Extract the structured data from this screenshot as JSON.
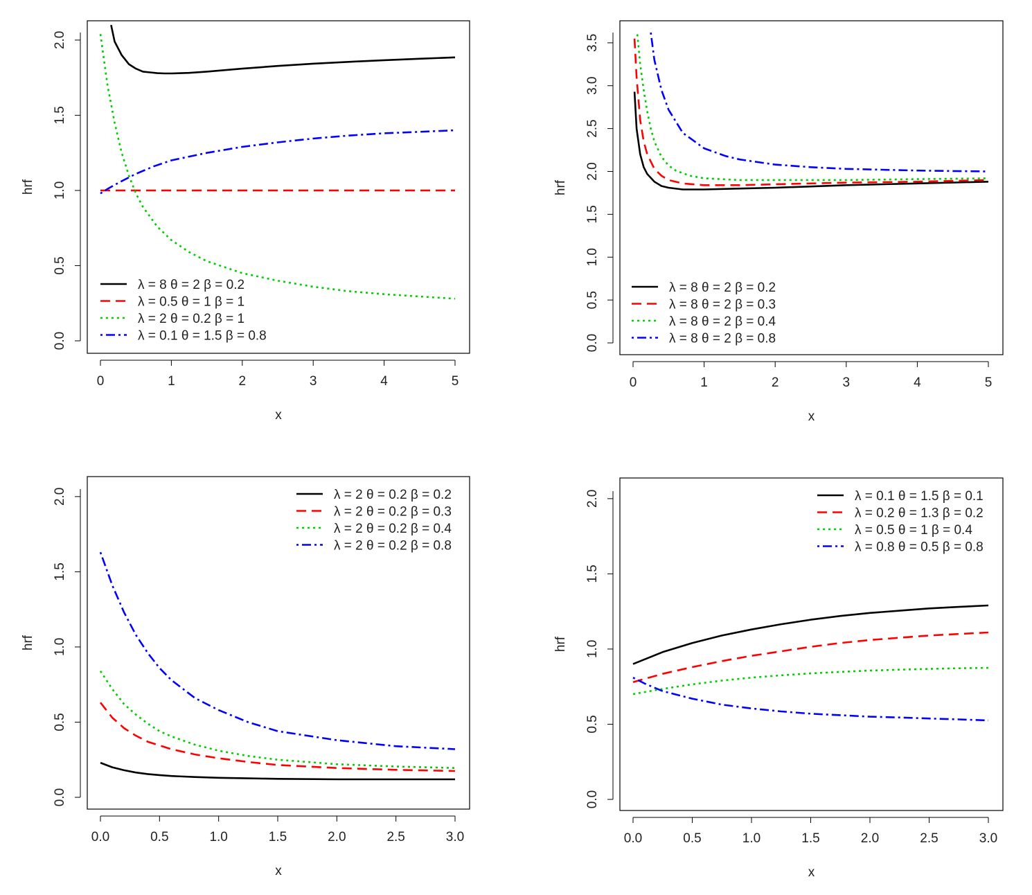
{
  "chart_data": [
    {
      "type": "line",
      "xlabel": "x",
      "ylabel": "hrf",
      "xlim": [
        0,
        5
      ],
      "ylim": [
        0,
        2.05
      ],
      "xticks": [
        "0",
        "1",
        "2",
        "3",
        "4",
        "5"
      ],
      "yticks": [
        "0.0",
        "0.5",
        "1.0",
        "1.5",
        "2.0"
      ],
      "legend_position": "bottom-left",
      "series": [
        {
          "name": "λ = 8  θ = 2  β = 0.2",
          "color": "#000000",
          "style": "solid",
          "x": [
            0.15,
            0.2,
            0.3,
            0.4,
            0.5,
            0.6,
            0.7,
            0.8,
            0.9,
            1.0,
            1.25,
            1.5,
            2.0,
            2.5,
            3.0,
            3.5,
            4.0,
            4.5,
            5.0
          ],
          "y": [
            2.1,
            1.99,
            1.9,
            1.84,
            1.81,
            1.79,
            1.785,
            1.78,
            1.778,
            1.778,
            1.782,
            1.79,
            1.81,
            1.828,
            1.843,
            1.855,
            1.866,
            1.876,
            1.885
          ]
        },
        {
          "name": "λ = 0.5  θ = 1  β = 1",
          "color": "#ff0000",
          "style": "dashed",
          "x": [
            0,
            5
          ],
          "y": [
            1.0,
            1.0
          ]
        },
        {
          "name": "λ = 2  θ = 0.2  β = 1",
          "color": "#00cc00",
          "style": "dotted",
          "x": [
            0,
            0.1,
            0.2,
            0.3,
            0.4,
            0.5,
            0.6,
            0.8,
            1.0,
            1.25,
            1.5,
            2.0,
            2.5,
            3.0,
            3.5,
            4.0,
            4.5,
            5.0
          ],
          "y": [
            2.04,
            1.7,
            1.45,
            1.25,
            1.1,
            0.98,
            0.89,
            0.76,
            0.67,
            0.59,
            0.53,
            0.45,
            0.4,
            0.36,
            0.33,
            0.31,
            0.295,
            0.28
          ]
        },
        {
          "name": "λ = 0.1  θ = 1.5  β = 0.8",
          "color": "#0000ff",
          "style": "dotdash",
          "x": [
            0,
            0.1,
            0.25,
            0.5,
            0.75,
            1.0,
            1.5,
            2.0,
            2.5,
            3.0,
            3.5,
            4.0,
            4.5,
            5.0
          ],
          "y": [
            0.98,
            1.01,
            1.05,
            1.11,
            1.16,
            1.2,
            1.25,
            1.29,
            1.32,
            1.345,
            1.365,
            1.38,
            1.39,
            1.4
          ]
        }
      ]
    },
    {
      "type": "line",
      "xlabel": "x",
      "ylabel": "hrf",
      "xlim": [
        0,
        5
      ],
      "ylim": [
        0,
        3.62
      ],
      "xticks": [
        "0",
        "1",
        "2",
        "3",
        "4",
        "5"
      ],
      "yticks": [
        "0.0",
        "0.5",
        "1.0",
        "1.5",
        "2.0",
        "2.5",
        "3.0",
        "3.5"
      ],
      "legend_position": "bottom-left",
      "series": [
        {
          "name": "λ = 8  θ = 2  β = 0.2",
          "color": "#000000",
          "style": "solid",
          "x": [
            0.02,
            0.05,
            0.1,
            0.15,
            0.2,
            0.3,
            0.4,
            0.5,
            0.7,
            1.0,
            1.5,
            2.0,
            3.0,
            4.0,
            5.0
          ],
          "y": [
            2.93,
            2.5,
            2.2,
            2.05,
            1.97,
            1.88,
            1.83,
            1.81,
            1.79,
            1.79,
            1.8,
            1.81,
            1.84,
            1.86,
            1.88
          ]
        },
        {
          "name": "λ = 8  θ = 2  β = 0.3",
          "color": "#ff0000",
          "style": "dashed",
          "x": [
            0.02,
            0.05,
            0.1,
            0.15,
            0.2,
            0.3,
            0.4,
            0.5,
            0.7,
            1.0,
            1.5,
            2.0,
            3.0,
            4.0,
            5.0
          ],
          "y": [
            3.55,
            3.1,
            2.6,
            2.35,
            2.2,
            2.03,
            1.95,
            1.9,
            1.86,
            1.84,
            1.84,
            1.85,
            1.87,
            1.88,
            1.9
          ]
        },
        {
          "name": "λ = 8  θ = 2  β = 0.4",
          "color": "#00cc00",
          "style": "dotted",
          "x": [
            0.06,
            0.1,
            0.15,
            0.2,
            0.25,
            0.3,
            0.4,
            0.5,
            0.6,
            0.8,
            1.0,
            1.5,
            2.0,
            3.0,
            4.0,
            5.0
          ],
          "y": [
            3.6,
            3.25,
            2.95,
            2.7,
            2.5,
            2.35,
            2.17,
            2.07,
            2.01,
            1.95,
            1.92,
            1.9,
            1.9,
            1.9,
            1.91,
            1.92
          ]
        },
        {
          "name": "λ = 8  θ = 2  β = 0.8",
          "color": "#0000ff",
          "style": "dotdash",
          "x": [
            0.25,
            0.3,
            0.4,
            0.5,
            0.7,
            1.0,
            1.3,
            1.5,
            2.0,
            2.5,
            3.0,
            3.5,
            4.0,
            4.5,
            5.0
          ],
          "y": [
            3.62,
            3.3,
            2.95,
            2.72,
            2.45,
            2.27,
            2.18,
            2.14,
            2.08,
            2.05,
            2.03,
            2.02,
            2.01,
            2.005,
            2.0
          ]
        }
      ]
    },
    {
      "type": "line",
      "xlabel": "x",
      "ylabel": "hrf",
      "xlim": [
        0,
        3
      ],
      "ylim": [
        0,
        2.05
      ],
      "xticks": [
        "0.0",
        "0.5",
        "1.0",
        "1.5",
        "2.0",
        "2.5",
        "3.0"
      ],
      "yticks": [
        "0.0",
        "0.5",
        "1.0",
        "1.5",
        "2.0"
      ],
      "legend_position": "top-right",
      "series": [
        {
          "name": "λ = 2  θ = 0.2  β = 0.2",
          "color": "#000000",
          "style": "solid",
          "x": [
            0,
            0.1,
            0.2,
            0.3,
            0.4,
            0.5,
            0.6,
            0.8,
            1.0,
            1.25,
            1.5,
            2.0,
            2.5,
            3.0
          ],
          "y": [
            0.23,
            0.2,
            0.18,
            0.165,
            0.155,
            0.148,
            0.142,
            0.135,
            0.13,
            0.126,
            0.123,
            0.12,
            0.12,
            0.12
          ]
        },
        {
          "name": "λ = 2  θ = 0.2  β = 0.3",
          "color": "#ff0000",
          "style": "dashed",
          "x": [
            0,
            0.1,
            0.2,
            0.3,
            0.4,
            0.5,
            0.6,
            0.8,
            1.0,
            1.25,
            1.5,
            2.0,
            2.5,
            3.0
          ],
          "y": [
            0.63,
            0.53,
            0.46,
            0.41,
            0.37,
            0.345,
            0.32,
            0.285,
            0.26,
            0.235,
            0.215,
            0.195,
            0.183,
            0.175
          ]
        },
        {
          "name": "λ = 2  θ = 0.2  β = 0.4",
          "color": "#00cc00",
          "style": "dotted",
          "x": [
            0,
            0.1,
            0.2,
            0.3,
            0.4,
            0.5,
            0.6,
            0.8,
            1.0,
            1.25,
            1.5,
            2.0,
            2.5,
            3.0
          ],
          "y": [
            0.84,
            0.72,
            0.62,
            0.55,
            0.49,
            0.44,
            0.405,
            0.35,
            0.31,
            0.275,
            0.25,
            0.22,
            0.205,
            0.195
          ]
        },
        {
          "name": "λ = 2  θ = 0.2  β = 0.8",
          "color": "#0000ff",
          "style": "dotdash",
          "x": [
            0,
            0.1,
            0.2,
            0.3,
            0.4,
            0.5,
            0.6,
            0.8,
            1.0,
            1.25,
            1.5,
            2.0,
            2.5,
            3.0
          ],
          "y": [
            1.63,
            1.41,
            1.23,
            1.08,
            0.96,
            0.86,
            0.78,
            0.66,
            0.58,
            0.5,
            0.44,
            0.38,
            0.34,
            0.32
          ]
        }
      ]
    },
    {
      "type": "line",
      "xlabel": "x",
      "ylabel": "hrf",
      "xlim": [
        0,
        3
      ],
      "ylim": [
        0,
        2.05
      ],
      "xticks": [
        "0.0",
        "0.5",
        "1.0",
        "1.5",
        "2.0",
        "2.5",
        "3.0"
      ],
      "yticks": [
        "0.0",
        "0.5",
        "1.0",
        "1.5",
        "2.0"
      ],
      "legend_position": "top-right",
      "series": [
        {
          "name": "λ = 0.1  θ = 1.5  β = 0.1",
          "color": "#000000",
          "style": "solid",
          "x": [
            0,
            0.25,
            0.5,
            0.75,
            1.0,
            1.25,
            1.5,
            1.75,
            2.0,
            2.25,
            2.5,
            2.75,
            3.0
          ],
          "y": [
            0.9,
            0.98,
            1.04,
            1.09,
            1.13,
            1.165,
            1.195,
            1.22,
            1.24,
            1.255,
            1.27,
            1.28,
            1.29
          ]
        },
        {
          "name": "λ = 0.2  θ = 1.3  β = 0.2",
          "color": "#ff0000",
          "style": "dashed",
          "x": [
            0,
            0.25,
            0.5,
            0.75,
            1.0,
            1.25,
            1.5,
            1.75,
            2.0,
            2.25,
            2.5,
            2.75,
            3.0
          ],
          "y": [
            0.78,
            0.835,
            0.88,
            0.92,
            0.955,
            0.985,
            1.015,
            1.04,
            1.06,
            1.075,
            1.09,
            1.1,
            1.11
          ]
        },
        {
          "name": "λ = 0.5  θ = 1  β = 0.4",
          "color": "#00cc00",
          "style": "dotted",
          "x": [
            0,
            0.25,
            0.5,
            0.75,
            1.0,
            1.25,
            1.5,
            1.75,
            2.0,
            2.25,
            2.5,
            2.75,
            3.0
          ],
          "y": [
            0.7,
            0.735,
            0.765,
            0.79,
            0.81,
            0.825,
            0.838,
            0.848,
            0.857,
            0.863,
            0.868,
            0.872,
            0.875
          ]
        },
        {
          "name": "λ = 0.8  θ = 0.5  β = 0.8",
          "color": "#0000ff",
          "style": "dotdash",
          "x": [
            0,
            0.1,
            0.25,
            0.5,
            0.75,
            1.0,
            1.25,
            1.5,
            1.75,
            2.0,
            2.25,
            2.5,
            2.75,
            3.0
          ],
          "y": [
            0.81,
            0.77,
            0.72,
            0.67,
            0.63,
            0.605,
            0.585,
            0.57,
            0.56,
            0.55,
            0.545,
            0.538,
            0.532,
            0.525
          ]
        }
      ]
    }
  ]
}
